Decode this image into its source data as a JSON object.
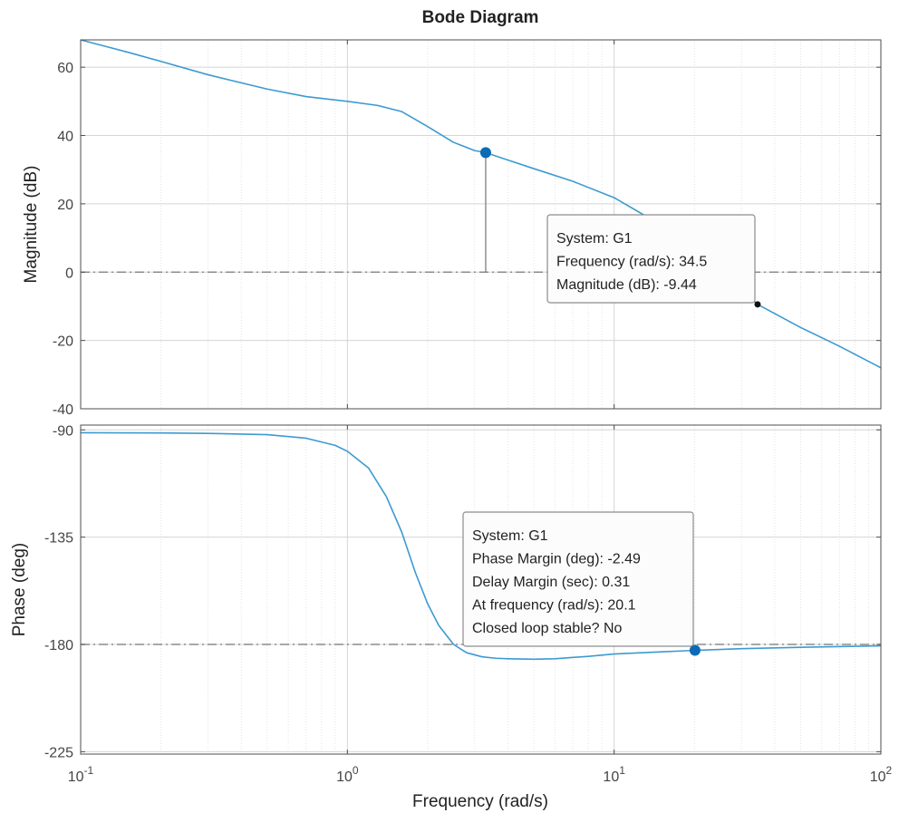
{
  "chart_data": {
    "type": "line",
    "title": "Bode Diagram",
    "xlabel": "Frequency  (rad/s)",
    "xscale": "log",
    "xlim": [
      0.1,
      100
    ],
    "x_tick_labels": [
      {
        "value": 0.1,
        "base": "10",
        "exp": "-1"
      },
      {
        "value": 1,
        "base": "10",
        "exp": "0"
      },
      {
        "value": 10,
        "base": "10",
        "exp": "1"
      },
      {
        "value": 100,
        "base": "10",
        "exp": "2"
      }
    ],
    "grid": true,
    "colors": {
      "line": "#3d9ad1",
      "marker": "#0b6bb5",
      "reference": "#8c8c8c",
      "grid": "#d5d5d5"
    },
    "magnitude": {
      "ylabel": "Magnitude (dB)",
      "ylim": [
        -40,
        68
      ],
      "yticks": [
        -40,
        -20,
        0,
        20,
        40,
        60
      ],
      "reference_line": 0,
      "series": {
        "x": [
          0.1,
          0.15,
          0.2,
          0.3,
          0.5,
          0.7,
          1.0,
          1.3,
          1.6,
          2.0,
          2.5,
          3.0,
          3.3,
          4.0,
          5.0,
          7.0,
          10.0,
          15.0,
          20.0,
          34.5,
          50.0,
          70.0,
          100.0
        ],
        "y": [
          68.0,
          64.4,
          61.7,
          57.8,
          53.6,
          51.4,
          50.0,
          48.8,
          47.0,
          42.6,
          38.0,
          35.6,
          35.0,
          32.8,
          30.3,
          26.6,
          21.8,
          13.8,
          7.8,
          -9.44,
          -16.2,
          -21.7,
          -28.0
        ]
      },
      "markers": [
        {
          "x": 3.3,
          "y": 35.0,
          "stem_to": 0
        },
        {
          "x": 34.5,
          "y": -9.44
        }
      ],
      "datatip": {
        "lines": [
          "System: G1",
          "Frequency (rad/s): 34.5",
          "Magnitude (dB): -9.44"
        ]
      }
    },
    "phase": {
      "ylabel": "Phase (deg)",
      "ylim": [
        -226,
        -88
      ],
      "yticks": [
        -225,
        -180,
        -135,
        -90
      ],
      "reference_line": -180,
      "series": {
        "x": [
          0.1,
          0.2,
          0.3,
          0.5,
          0.7,
          0.9,
          1.0,
          1.2,
          1.4,
          1.6,
          1.8,
          2.0,
          2.2,
          2.5,
          2.8,
          3.2,
          3.6,
          4.0,
          5.0,
          6.0,
          8.0,
          10.0,
          15.0,
          20.1,
          30.0,
          50.0,
          100.0
        ],
        "y": [
          -91.2,
          -91.3,
          -91.5,
          -92.0,
          -93.5,
          -96.5,
          -99.0,
          -106.0,
          -118.0,
          -133.0,
          -150.0,
          -163.0,
          -172.0,
          -180.0,
          -183.5,
          -185.2,
          -185.8,
          -186.0,
          -186.2,
          -186.0,
          -185.0,
          -184.0,
          -183.1,
          -182.5,
          -181.8,
          -181.2,
          -180.6
        ]
      },
      "markers": [
        {
          "x": 20.1,
          "y": -182.49
        }
      ],
      "datatip": {
        "lines": [
          "System: G1",
          "Phase Margin (deg): -2.49",
          "Delay Margin (sec): 0.31",
          "At frequency (rad/s): 20.1",
          "Closed loop stable? No"
        ]
      }
    }
  }
}
